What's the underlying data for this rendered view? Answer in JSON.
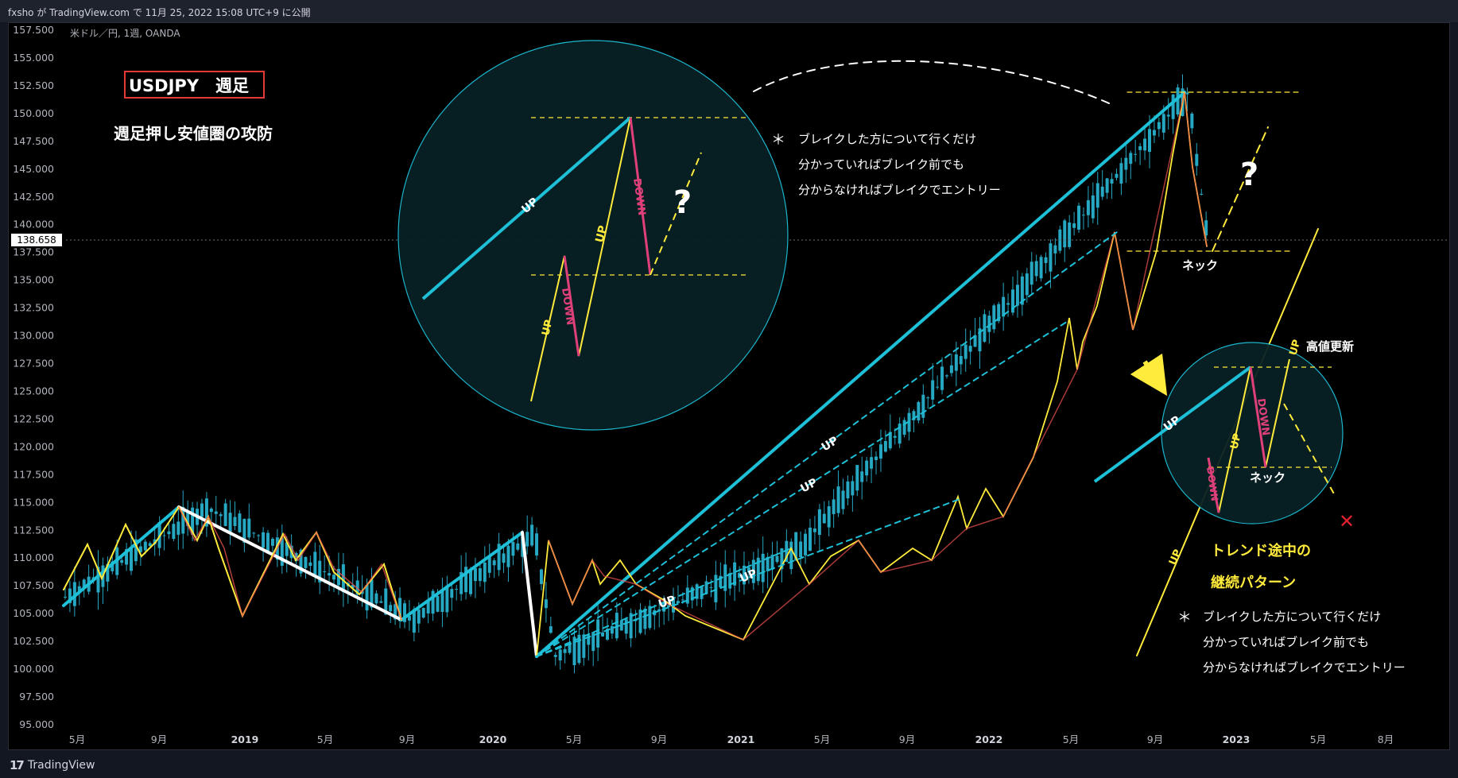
{
  "header": {
    "publish_text": "fxsho が TradingView.com で 11月 25, 2022 15:08 UTC+9 に公開"
  },
  "footer": {
    "brand": "TradingView",
    "brand_icon": "tradingview-logo-icon"
  },
  "symbol_info": "米ドル／円, 1週, OANDA",
  "colors": {
    "background": "#000000",
    "candle": "#26a7c2",
    "up_leg": "#ffeb3b",
    "down_leg": "#ef5350",
    "trend": "#1ec0d8",
    "white_line": "#ffffff",
    "neck": "#ffeb3b",
    "cross": "#e0202f",
    "title_border": "#e53935"
  },
  "chart_data": {
    "type": "line",
    "title": "USDJPY　週足",
    "subtitle": "週足押し安値圏の攻防",
    "y_axis": {
      "min": 95,
      "max": 157.5,
      "ticks": [
        157.5,
        155,
        152.5,
        150,
        147.5,
        145,
        142.5,
        140,
        137.5,
        135,
        132.5,
        130,
        127.5,
        125,
        122.5,
        120,
        117.5,
        115,
        112.5,
        110,
        107.5,
        105,
        102.5,
        100,
        97.5,
        95
      ]
    },
    "x_axis": {
      "ticks": [
        {
          "label": "5月",
          "bold": false
        },
        {
          "label": "9月",
          "bold": false
        },
        {
          "label": "2019",
          "bold": true
        },
        {
          "label": "5月",
          "bold": false
        },
        {
          "label": "9月",
          "bold": false
        },
        {
          "label": "2020",
          "bold": true
        },
        {
          "label": "5月",
          "bold": false
        },
        {
          "label": "9月",
          "bold": false
        },
        {
          "label": "2021",
          "bold": true
        },
        {
          "label": "5月",
          "bold": false
        },
        {
          "label": "9月",
          "bold": false
        },
        {
          "label": "2022",
          "bold": true
        },
        {
          "label": "5月",
          "bold": false
        },
        {
          "label": "9月",
          "bold": false
        },
        {
          "label": "2023",
          "bold": true
        },
        {
          "label": "5月",
          "bold": false
        },
        {
          "label": "8月",
          "bold": false
        }
      ]
    },
    "current_price": "138.658",
    "swing_points": [
      {
        "date": "2018-03",
        "price": 106.5
      },
      {
        "date": "2018-10",
        "price": 114.5
      },
      {
        "date": "2019-08",
        "price": 104.5
      },
      {
        "date": "2020-02",
        "price": 112.0
      },
      {
        "date": "2020-03",
        "price": 101.2
      },
      {
        "date": "2021-03",
        "price": 110.9
      },
      {
        "date": "2022-10",
        "price": 151.9
      },
      {
        "date": "2022-11",
        "price": 138.0
      }
    ],
    "annotations": {
      "up": "UP",
      "down": "DOWN",
      "question": "?",
      "neck": "ネック",
      "new_high": "高値更新",
      "continuation_title_1": "トレンド途中の",
      "continuation_title_2": "継続パターン",
      "note_bullet": "＊",
      "note_line_1": "ブレイクした方について行くだけ",
      "note_line_2": "分かっていればブレイク前でも",
      "note_line_3": "分からなければブレイクでエントリー",
      "cross": "✕"
    }
  }
}
